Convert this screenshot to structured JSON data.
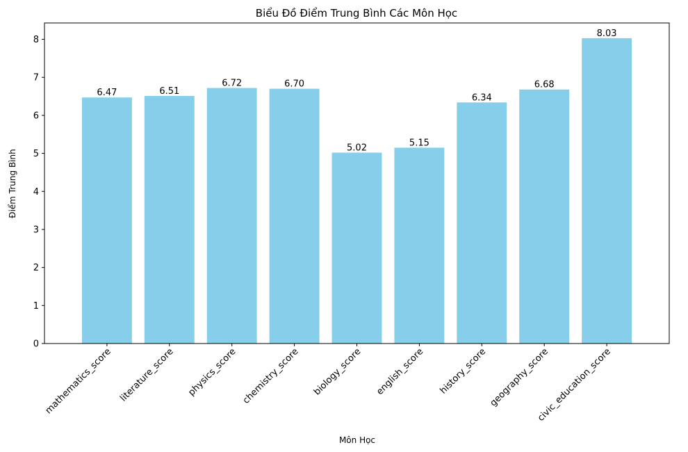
{
  "chart_data": {
    "type": "bar",
    "title": "Biểu Đồ Điểm Trung Bình Các Môn Học",
    "xlabel": "Môn Học",
    "ylabel": "Điểm Trung Bình",
    "categories": [
      "mathematics_score",
      "literature_score",
      "physics_score",
      "chemistry_score",
      "biology_score",
      "english_score",
      "history_score",
      "geography_score",
      "civic_education_score"
    ],
    "values": [
      6.47,
      6.51,
      6.72,
      6.7,
      5.02,
      5.15,
      6.34,
      6.68,
      8.03
    ],
    "value_labels": [
      "6.47",
      "6.51",
      "6.72",
      "6.70",
      "5.02",
      "5.15",
      "6.34",
      "6.68",
      "8.03"
    ],
    "ylim": [
      0,
      8.43
    ],
    "yticks": [
      0,
      1,
      2,
      3,
      4,
      5,
      6,
      7,
      8
    ],
    "grid": false,
    "bar_color": "#87ceeb"
  }
}
